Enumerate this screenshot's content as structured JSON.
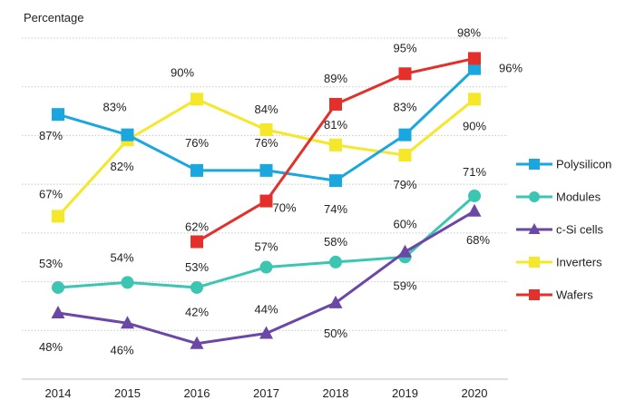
{
  "chart_data": {
    "type": "line",
    "title": "",
    "ylabel": "Percentage",
    "xlabel": "",
    "x": [
      "2014",
      "2015",
      "2016",
      "2017",
      "2018",
      "2019",
      "2020"
    ],
    "ylim": [
      35,
      102
    ],
    "grid": true,
    "legend_position": "right",
    "series": [
      {
        "name": "Polysilicon",
        "color": "#1aa7e0",
        "marker": "square",
        "values": [
          87,
          83,
          76,
          76,
          74,
          83,
          96
        ],
        "labels": [
          "87%",
          "83%",
          "76%",
          "76%",
          "74%",
          "83%",
          "96%"
        ]
      },
      {
        "name": "Modules",
        "color": "#3cc6b2",
        "marker": "circle",
        "values": [
          53,
          54,
          53,
          57,
          58,
          59,
          71
        ],
        "labels": [
          "53%",
          "54%",
          "53%",
          "57%",
          "58%",
          "59%",
          "71%"
        ]
      },
      {
        "name": "c-Si cells",
        "color": "#6b47a6",
        "marker": "triangle",
        "values": [
          48,
          46,
          42,
          44,
          50,
          60,
          68
        ],
        "labels": [
          "48%",
          "46%",
          "42%",
          "44%",
          "50%",
          "60%",
          "68%"
        ]
      },
      {
        "name": "Inverters",
        "color": "#f5e72a",
        "marker": "square",
        "values": [
          67,
          82,
          90,
          84,
          81,
          79,
          90
        ],
        "labels": [
          "67%",
          "82%",
          "90%",
          "84%",
          "81%",
          "79%",
          "90%"
        ]
      },
      {
        "name": "Wafers",
        "color": "#e3302a",
        "marker": "square",
        "values": [
          null,
          null,
          62,
          70,
          89,
          95,
          98
        ],
        "labels": [
          null,
          null,
          "62%",
          "70%",
          "89%",
          "95%",
          "98%"
        ]
      }
    ]
  }
}
